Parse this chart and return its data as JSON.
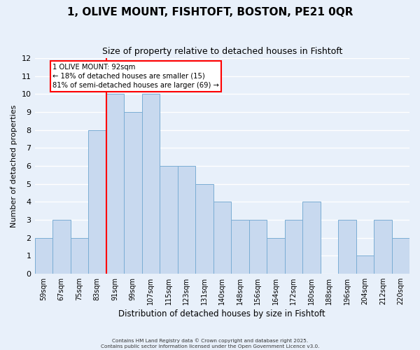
{
  "title": "1, OLIVE MOUNT, FISHTOFT, BOSTON, PE21 0QR",
  "subtitle": "Size of property relative to detached houses in Fishtoft",
  "xlabel": "Distribution of detached houses by size in Fishtoft",
  "ylabel": "Number of detached properties",
  "bin_labels": [
    "59sqm",
    "67sqm",
    "75sqm",
    "83sqm",
    "91sqm",
    "99sqm",
    "107sqm",
    "115sqm",
    "123sqm",
    "131sqm",
    "140sqm",
    "148sqm",
    "156sqm",
    "164sqm",
    "172sqm",
    "180sqm",
    "188sqm",
    "196sqm",
    "204sqm",
    "212sqm",
    "220sqm"
  ],
  "bar_values": [
    2,
    3,
    2,
    8,
    10,
    9,
    10,
    6,
    6,
    5,
    4,
    3,
    3,
    2,
    3,
    4,
    0,
    3,
    1,
    3,
    2
  ],
  "bar_color": "#c8d9ef",
  "bar_edge_color": "#7aadd4",
  "background_color": "#e8f0fa",
  "fig_background_color": "#e8f0fa",
  "grid_color": "#ffffff",
  "red_line_bin_index": 4,
  "annotation_title": "1 OLIVE MOUNT: 92sqm",
  "annotation_line1": "← 18% of detached houses are smaller (15)",
  "annotation_line2": "81% of semi-detached houses are larger (69) →",
  "ylim": [
    0,
    12
  ],
  "yticks": [
    0,
    1,
    2,
    3,
    4,
    5,
    6,
    7,
    8,
    9,
    10,
    11,
    12
  ],
  "title_fontsize": 11,
  "subtitle_fontsize": 9,
  "ylabel_fontsize": 8,
  "xlabel_fontsize": 8.5,
  "footer1": "Contains HM Land Registry data © Crown copyright and database right 2025.",
  "footer2": "Contains public sector information licensed under the Open Government Licence v3.0."
}
